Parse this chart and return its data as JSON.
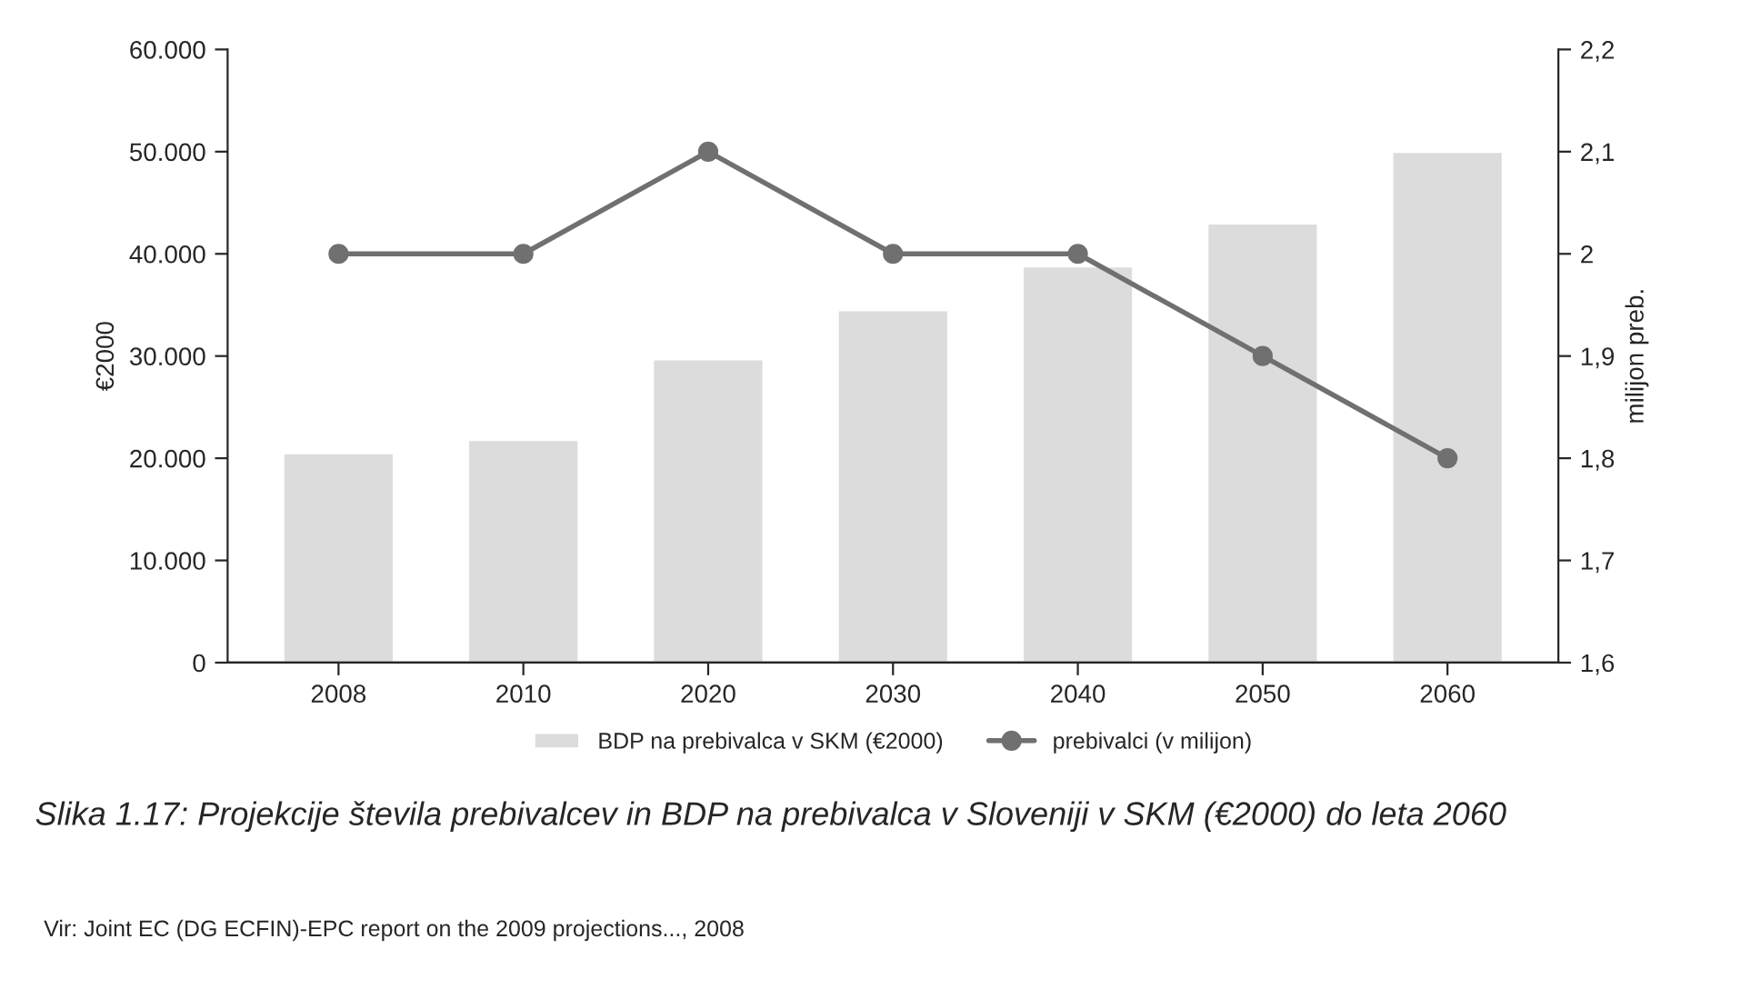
{
  "chart_data": {
    "type": "bar",
    "categories": [
      "2008",
      "2010",
      "2020",
      "2030",
      "2040",
      "2050",
      "2060"
    ],
    "ylabel": "€2000",
    "y2label": "milijon preb.",
    "series": [
      {
        "name": "BDP na prebivalca v SKM (€2000)",
        "color": "#dcdcdc",
        "values": [
          20500,
          21800,
          29700,
          34500,
          38800,
          43000,
          50000
        ]
      },
      {
        "name": "prebivalci (v milijon)",
        "type": "line",
        "axis": "y2",
        "color": "#707070",
        "marker": "circle",
        "values": [
          2.0,
          2.0,
          2.1,
          2.0,
          2.0,
          1.9,
          1.8
        ]
      }
    ],
    "ylim": [
      0,
      60000
    ],
    "yticks": [
      0,
      {
        "value": 10000,
        "label": "10.000"
      },
      {
        "value": 20000,
        "label": "20.000"
      },
      {
        "value": 30000,
        "label": "30.000"
      },
      {
        "value": 40000,
        "label": "40.000"
      },
      {
        "value": 50000,
        "label": "50.000"
      },
      {
        "value": 60000,
        "label": "60.000"
      }
    ],
    "y2lim": [
      1.6,
      2.2
    ],
    "y2ticks": [
      {
        "value": 1.6,
        "label": "1,6"
      },
      {
        "value": 1.7,
        "label": "1,7"
      },
      {
        "value": 1.8,
        "label": "1,8"
      },
      {
        "value": 1.9,
        "label": "1,9"
      },
      2,
      {
        "value": 2.1,
        "label": "2,1"
      },
      {
        "value": 2.2,
        "label": "2,2"
      }
    ],
    "grid": false,
    "legend": "bottom",
    "annotations": [
      "Slika 1.17: Projekcije števila prebivalcev in BDP na prebivalca v Sloveniji v SKM (€2000) do leta 2060",
      "Vir: Joint EC (DG ECFIN)-EPC report on the 2009 projections..., 2008"
    ]
  }
}
